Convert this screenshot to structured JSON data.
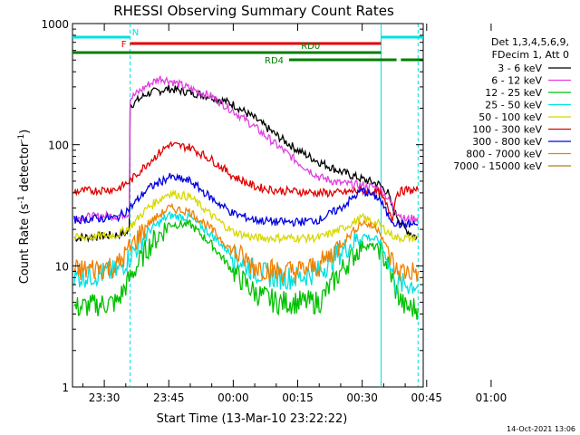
{
  "chart_data": {
    "type": "line",
    "title": "RHESSI Observing Summary Count Rates",
    "xlabel": "Start Time (13-Mar-10 23:22:22)",
    "ylabel_main": "Count Rate (s",
    "ylabel_exp1": "-1",
    "ylabel_mid": " detector",
    "ylabel_exp2": "-1",
    "ylabel_end": ")",
    "y_scale": "log",
    "ylim": [
      1,
      1000
    ],
    "xlim_minutes": [
      -22.4,
      59.2
    ],
    "x_ticks": [
      {
        "label": "23:30",
        "t": -15
      },
      {
        "label": "23:45",
        "t": 0
      },
      {
        "label": "00:00",
        "t": 15
      },
      {
        "label": "00:15",
        "t": 30
      },
      {
        "label": "00:30",
        "t": 45
      },
      {
        "label": "00:45",
        "t": 60
      },
      {
        "label": "01:00",
        "t": 75
      }
    ],
    "y_ticks": [
      {
        "label": "1",
        "v": 1
      },
      {
        "label": "10",
        "v": 10
      },
      {
        "label": "100",
        "v": 100
      },
      {
        "label": "1000",
        "v": 1000
      }
    ],
    "legend_header": [
      "Det 1,3,4,5,6,9,",
      "FDecim 1, Att 0"
    ],
    "legend_position": "right",
    "series": [
      {
        "name": "3 - 6 keV",
        "color": "#000000",
        "x": [
          -22,
          -12,
          -9.2,
          -9,
          -5,
          0,
          5,
          10,
          15,
          20,
          25,
          30,
          35,
          40,
          45,
          49,
          51,
          52,
          55,
          58
        ],
        "y": [
          17,
          18,
          19,
          210,
          265,
          290,
          270,
          250,
          215,
          165,
          120,
          90,
          72,
          60,
          52,
          47,
          40,
          30,
          20,
          17
        ]
      },
      {
        "name": "6 - 12 keV",
        "color": "#e040e0",
        "x": [
          -22,
          -12,
          -9.2,
          -9,
          -5,
          -2,
          0,
          5,
          10,
          15,
          20,
          25,
          30,
          35,
          40,
          45,
          49,
          51,
          53,
          55,
          58
        ],
        "y": [
          25,
          26,
          27,
          240,
          310,
          355,
          340,
          290,
          250,
          190,
          140,
          100,
          72,
          54,
          48,
          46,
          44,
          36,
          28,
          24,
          25
        ]
      },
      {
        "name": "12 - 25 keV",
        "color": "#00c000",
        "x": [
          -22,
          -12,
          -9,
          -5,
          0,
          5,
          10,
          15,
          20,
          25,
          30,
          35,
          40,
          45,
          49,
          51,
          53,
          55,
          58
        ],
        "y": [
          4.5,
          5,
          8,
          14,
          22,
          22,
          15,
          9,
          6,
          5,
          5,
          5,
          9,
          15,
          14,
          10,
          6,
          4.5,
          4.5
        ]
      },
      {
        "name": "25 - 50 keV",
        "color": "#00e0e0",
        "x": [
          -22,
          -12,
          -9,
          -5,
          0,
          5,
          10,
          15,
          20,
          25,
          30,
          35,
          40,
          45,
          49,
          51,
          53,
          55,
          58
        ],
        "y": [
          8,
          9,
          12,
          19,
          26,
          25,
          18,
          12,
          9,
          8,
          8,
          9,
          13,
          18,
          16,
          11,
          7,
          7,
          7
        ]
      },
      {
        "name": "50 - 100 keV",
        "color": "#d8d800",
        "x": [
          -22,
          -12,
          -9,
          -5,
          0,
          5,
          10,
          15,
          20,
          25,
          30,
          35,
          40,
          45,
          49,
          51,
          53,
          55,
          58
        ],
        "y": [
          17,
          18,
          21,
          30,
          40,
          37,
          26,
          19,
          17,
          17,
          17,
          17,
          20,
          25,
          22,
          19,
          17,
          17,
          17
        ]
      },
      {
        "name": "100 - 300 keV",
        "color": "#e00000",
        "x": [
          -22,
          -12,
          -9,
          -5,
          0,
          5,
          10,
          15,
          20,
          25,
          30,
          35,
          40,
          45,
          49,
          51,
          52,
          53,
          55,
          58
        ],
        "y": [
          41,
          43,
          50,
          70,
          100,
          95,
          75,
          55,
          45,
          42,
          41,
          40,
          40,
          42,
          40,
          30,
          25,
          40,
          42,
          42
        ]
      },
      {
        "name": "300 - 800 keV",
        "color": "#0000e0",
        "x": [
          -22,
          -12,
          -9,
          -5,
          0,
          5,
          10,
          15,
          20,
          25,
          30,
          35,
          40,
          45,
          49,
          51,
          53,
          55,
          58
        ],
        "y": [
          24,
          25,
          30,
          43,
          54,
          50,
          36,
          27,
          24,
          23,
          23,
          24,
          30,
          42,
          36,
          26,
          22,
          22,
          22
        ]
      },
      {
        "name": "800 - 7000 keV",
        "color": "#f08000",
        "x": [
          -22,
          -12,
          -9,
          -5,
          0,
          5,
          10,
          15,
          20,
          25,
          30,
          35,
          40,
          45,
          49,
          51,
          53,
          55,
          58
        ],
        "y": [
          9,
          10,
          14,
          22,
          30,
          28,
          20,
          13,
          10,
          9,
          9,
          10,
          15,
          23,
          20,
          13,
          9,
          9,
          9
        ]
      },
      {
        "name": "7000 - 15000 keV",
        "color": "#b08000",
        "x": [],
        "y": []
      }
    ],
    "annotations": [
      {
        "label": "N",
        "color": "#00e0e0",
        "x_start": -22.4,
        "x_end": -9,
        "x2_start": 49.4,
        "x2_end": 59.2,
        "level": 1
      },
      {
        "label": "F",
        "color": "#e00000",
        "x_start": -9,
        "x_end": 49.4,
        "level": 2
      },
      {
        "label": "RD0",
        "color": "#008000",
        "x_start": -22.4,
        "x_end": 49.4,
        "level": 3
      },
      {
        "label": "RD4",
        "color": "#008000",
        "x_start": 28,
        "x_end": 53,
        "x2_start": 54,
        "x2_end": 59.2,
        "level": 4
      }
    ],
    "vertical_lines": [
      {
        "t": -9,
        "color": "#00e0e0",
        "style": "dashed"
      },
      {
        "t": 49.4,
        "color": "#00e0e0",
        "style": "solid"
      },
      {
        "t": 58,
        "color": "#00e0e0",
        "style": "dashed"
      }
    ],
    "timestamp": "14-Oct-2021 13:06"
  }
}
